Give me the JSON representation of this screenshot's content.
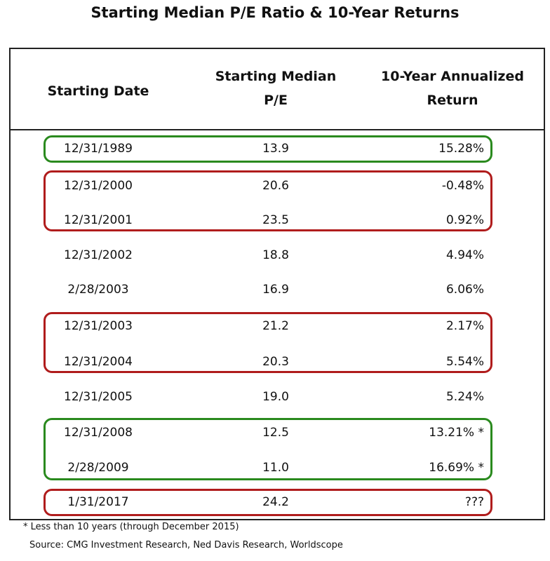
{
  "title": "Starting Median P/E Ratio & 10-Year Returns",
  "table": {
    "header": [
      "Starting Date",
      "Starting Median P/E",
      "10-Year Annualized Return"
    ],
    "rows": [
      [
        "12/31/1989",
        "13.9",
        "15.28%"
      ],
      [
        "12/31/2000",
        "20.6",
        "-0.48%"
      ],
      [
        "12/31/2001",
        "23.5",
        "0.92%"
      ],
      [
        "12/31/2002",
        "18.8",
        "4.94%"
      ],
      [
        "2/28/2003",
        "16.9",
        "6.06%"
      ],
      [
        "12/31/2003",
        "21.2",
        "2.17%"
      ],
      [
        "12/31/2004",
        "20.3",
        "5.54%"
      ],
      [
        "12/31/2005",
        "19.0",
        "5.24%"
      ],
      [
        "12/31/2008",
        "12.5",
        "13.21% *"
      ],
      [
        "2/28/2009",
        "11.0",
        "16.69% *"
      ],
      [
        "1/31/2017",
        "24.2",
        "???"
      ]
    ]
  },
  "footnotes": [
    "* Less than 10 years (through December 2015)",
    "Source: CMG Investment Research, Ned Davis Research, Worldscope"
  ]
}
